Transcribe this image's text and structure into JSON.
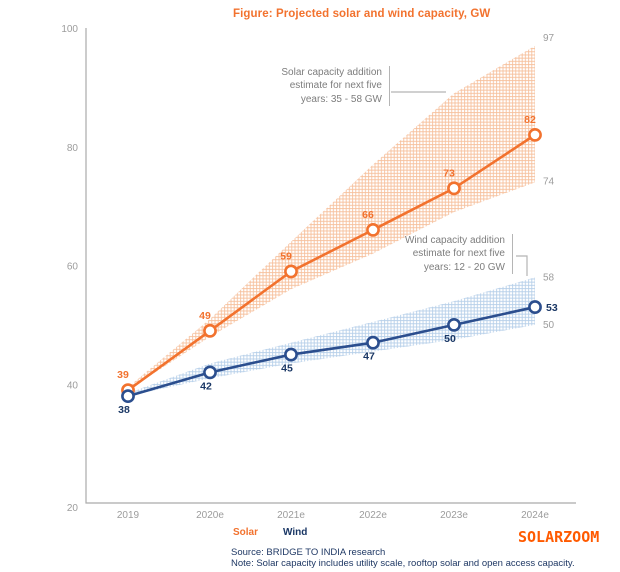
{
  "title": "Figure: Projected solar and wind capacity, GW",
  "watermark": "SOLARZOOM",
  "legend": {
    "solar": "Solar",
    "wind": "Wind"
  },
  "footer": {
    "source": "Source: BRIDGE TO INDIA research",
    "note": "Note: Solar capacity includes utility scale, rooftop solar and open access capacity."
  },
  "colors": {
    "solar": "#F2722E",
    "wind_line": "#2B4E8E",
    "wind_label": "#1A3765",
    "solar_band": "#F6C09C",
    "wind_band": "#B6CFE9",
    "axis": "#ABABAB",
    "tick_text": "#9C9C9C",
    "connector": "#B5B5B5",
    "watermark": "#FF5A00"
  },
  "chart_data": {
    "type": "line",
    "title": "Figure: Projected solar and wind capacity, GW",
    "categories": [
      "2019",
      "2020e",
      "2021e",
      "2022e",
      "2023e",
      "2024e"
    ],
    "y_ticks": [
      20,
      40,
      60,
      80,
      100
    ],
    "ylim": [
      20,
      100
    ],
    "grid": false,
    "legend_position": "bottom",
    "series": [
      {
        "name": "Solar",
        "values": [
          39,
          49,
          59,
          66,
          73,
          82
        ],
        "band": {
          "upper": [
            39.5,
            51,
            64,
            77,
            89,
            97
          ],
          "lower": [
            39,
            48,
            56,
            62,
            69,
            74
          ],
          "end_labels": {
            "upper": "97",
            "lower": "74"
          }
        }
      },
      {
        "name": "Wind",
        "values": [
          38,
          42,
          45,
          47,
          50,
          53
        ],
        "band": {
          "upper": [
            38.5,
            43.5,
            47,
            50.5,
            54,
            58
          ],
          "lower": [
            38,
            41,
            43.5,
            45.5,
            47.5,
            50
          ],
          "end_labels": {
            "upper": "58",
            "lower": "50"
          }
        }
      }
    ],
    "annotations": [
      {
        "id": "solar",
        "lines": [
          "Solar capacity addition",
          "estimate for next five",
          "years: 35 - 58 GW"
        ]
      },
      {
        "id": "wind",
        "lines": [
          "Wind capacity addition",
          "estimate for next five",
          "years: 12 - 20 GW"
        ]
      }
    ]
  }
}
